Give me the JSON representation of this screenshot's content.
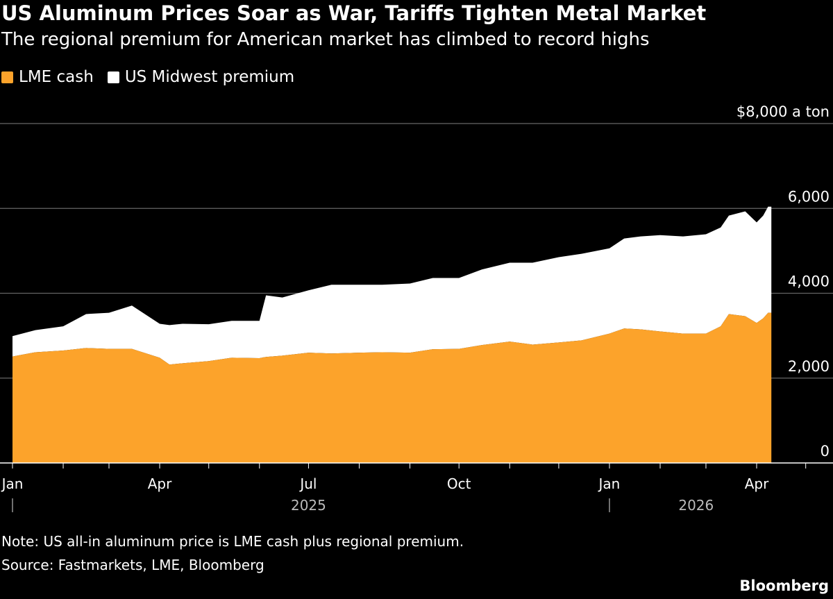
{
  "title": "US Aluminum Prices Soar as War, Tariffs Tighten Metal Market",
  "subtitle": "The regional premium for American market has climbed to record highs",
  "note": "Note: US all-in aluminum price is LME cash plus regional premium.",
  "source": "Source: Fastmarkets, LME, Bloomberg",
  "logo": "Bloomberg",
  "chart_data": {
    "type": "area",
    "stacked": true,
    "colors": {
      "LME cash": "#fca32b",
      "US Midwest premium": "#ffffff",
      "background": "#000000"
    },
    "legend_placement": "top-left",
    "grid": true,
    "ylim": [
      0,
      8000
    ],
    "xlim": [
      "2025-01-01",
      "2026-05-06"
    ],
    "y_ticks": [
      0,
      2000,
      4000,
      6000,
      8000
    ],
    "y_tick_labels": [
      "0",
      "2,000",
      "4,000",
      "6,000",
      "$8,000 a ton"
    ],
    "x_tick_labels": [
      {
        "date": "2025-01-01",
        "label": "Jan"
      },
      {
        "date": "2025-04-01",
        "label": "Apr"
      },
      {
        "date": "2025-07-01",
        "label": "Jul"
      },
      {
        "date": "2025-10-01",
        "label": "Oct"
      },
      {
        "date": "2026-01-01",
        "label": "Jan"
      },
      {
        "date": "2026-04-01",
        "label": "Apr"
      }
    ],
    "year_labels": [
      "2025",
      "2026"
    ],
    "x": [
      "2025-01-01",
      "2025-01-15",
      "2025-02-01",
      "2025-02-15",
      "2025-03-01",
      "2025-03-15",
      "2025-04-01",
      "2025-04-07",
      "2025-04-15",
      "2025-05-01",
      "2025-05-15",
      "2025-06-01",
      "2025-06-05",
      "2025-06-15",
      "2025-07-01",
      "2025-07-15",
      "2025-08-01",
      "2025-08-15",
      "2025-09-01",
      "2025-09-15",
      "2025-10-01",
      "2025-10-15",
      "2025-11-01",
      "2025-11-15",
      "2025-12-01",
      "2025-12-15",
      "2026-01-01",
      "2026-01-10",
      "2026-01-20",
      "2026-02-01",
      "2026-02-15",
      "2026-03-01",
      "2026-03-10",
      "2026-03-15",
      "2026-03-25",
      "2026-04-01",
      "2026-04-05",
      "2026-04-08",
      "2026-04-10"
    ],
    "series": [
      {
        "name": "LME cash",
        "values": [
          2510,
          2610,
          2650,
          2710,
          2690,
          2690,
          2480,
          2320,
          2350,
          2400,
          2480,
          2470,
          2500,
          2530,
          2600,
          2580,
          2600,
          2610,
          2600,
          2680,
          2690,
          2780,
          2860,
          2790,
          2840,
          2890,
          3050,
          3170,
          3150,
          3100,
          3050,
          3050,
          3220,
          3510,
          3460,
          3300,
          3410,
          3540,
          3540
        ]
      },
      {
        "name": "US Midwest premium",
        "values": [
          480,
          520,
          570,
          800,
          850,
          1020,
          800,
          930,
          930,
          870,
          870,
          880,
          1450,
          1370,
          1470,
          1620,
          1600,
          1590,
          1630,
          1680,
          1670,
          1780,
          1860,
          1930,
          2010,
          2040,
          2010,
          2120,
          2190,
          2270,
          2290,
          2340,
          2330,
          2320,
          2470,
          2370,
          2420,
          2500,
          2500
        ]
      }
    ]
  }
}
